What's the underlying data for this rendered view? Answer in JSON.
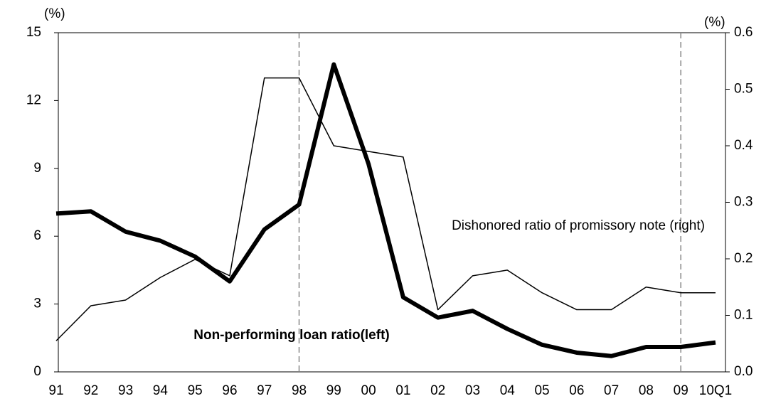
{
  "chart_data": {
    "type": "line",
    "y_unit": "(%)",
    "y2_unit": "(%)",
    "categories": [
      "91",
      "92",
      "93",
      "94",
      "95",
      "96",
      "97",
      "98",
      "99",
      "00",
      "01",
      "02",
      "03",
      "04",
      "05",
      "06",
      "07",
      "08",
      "09",
      "10Q1"
    ],
    "series": [
      {
        "name": "Non-performing loan ratio(left)",
        "color": "#000000",
        "width": 6,
        "axis": "y",
        "values": [
          7.0,
          7.1,
          6.2,
          5.8,
          5.1,
          4.0,
          6.3,
          7.4,
          13.6,
          9.2,
          3.3,
          2.4,
          2.7,
          1.9,
          1.2,
          0.85,
          0.7,
          1.1,
          1.1,
          1.3
        ]
      },
      {
        "name": "Dishonored ratio of promissory note (right)",
        "color": "#000000",
        "width": 1.5,
        "axis": "y2",
        "values": [
          0.055,
          0.117,
          0.127,
          0.167,
          0.199,
          0.17,
          0.52,
          0.52,
          0.4,
          0.39,
          0.38,
          0.11,
          0.17,
          0.18,
          0.14,
          0.11,
          0.11,
          0.15,
          0.14,
          0.14
        ]
      }
    ],
    "reference_lines": [
      "98",
      "09"
    ],
    "ylim": [
      0,
      15
    ],
    "yticks": [
      0,
      3,
      6,
      9,
      12,
      15
    ],
    "y2lim": [
      0,
      0.6
    ],
    "y2ticks": [
      {
        "value": 0,
        "label": "0.0"
      },
      0.1,
      0.2,
      0.3,
      0.4,
      0.5,
      0.6
    ]
  }
}
